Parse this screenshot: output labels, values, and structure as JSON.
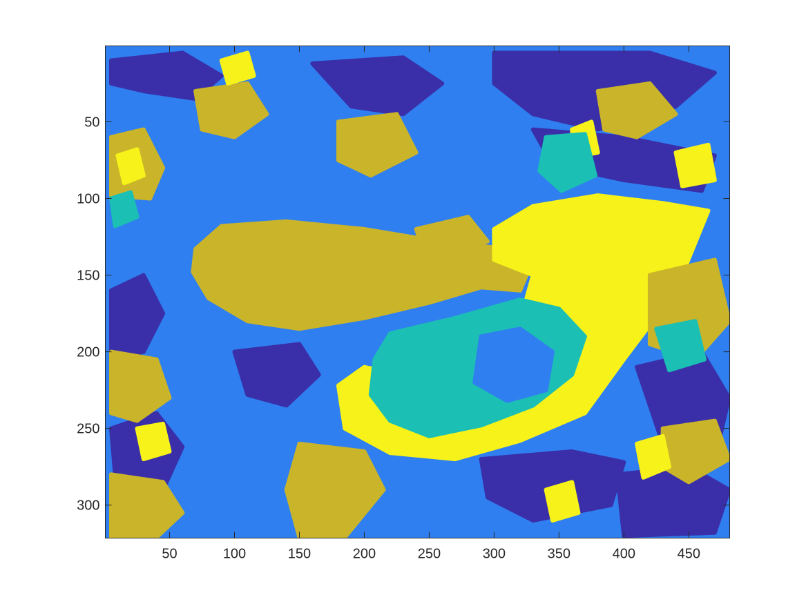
{
  "chart_data": {
    "type": "heatmap",
    "description_kind": "segmented image label map (imagesc)",
    "title": "",
    "xlabel": "",
    "ylabel": "",
    "xlim": [
      0.5,
      481.5
    ],
    "ylim": [
      0.5,
      321.5
    ],
    "y_reversed": true,
    "grid": false,
    "legend": "none",
    "x_ticks": [
      50,
      100,
      150,
      200,
      250,
      300,
      350,
      400,
      450
    ],
    "y_ticks": [
      50,
      100,
      150,
      200,
      250,
      300
    ],
    "x_tick_labels": [
      "50",
      "100",
      "150",
      "200",
      "250",
      "300",
      "350",
      "400",
      "450"
    ],
    "y_tick_labels": [
      "50",
      "100",
      "150",
      "200",
      "250",
      "300"
    ],
    "colormap": [
      "#3a2fa8",
      "#2f7ff0",
      "#1cbfb4",
      "#c9b42a",
      "#f6f21a"
    ],
    "class_levels": [
      1,
      2,
      3,
      4,
      5
    ],
    "background_class": 2,
    "regions": [
      {
        "class": 4,
        "outline": [
          [
            70,
            133
          ],
          [
            90,
            118
          ],
          [
            140,
            115
          ],
          [
            200,
            120
          ],
          [
            250,
            127
          ],
          [
            300,
            132
          ],
          [
            330,
            140
          ],
          [
            320,
            160
          ],
          [
            290,
            158
          ],
          [
            250,
            168
          ],
          [
            200,
            178
          ],
          [
            150,
            185
          ],
          [
            110,
            180
          ],
          [
            80,
            165
          ],
          [
            68,
            148
          ]
        ]
      },
      {
        "class": 5,
        "outline": [
          [
            300,
            120
          ],
          [
            330,
            105
          ],
          [
            380,
            98
          ],
          [
            430,
            103
          ],
          [
            465,
            108
          ],
          [
            440,
            160
          ],
          [
            400,
            205
          ],
          [
            370,
            240
          ],
          [
            320,
            258
          ],
          [
            270,
            270
          ],
          [
            220,
            266
          ],
          [
            185,
            250
          ],
          [
            180,
            222
          ],
          [
            200,
            210
          ],
          [
            230,
            215
          ],
          [
            280,
            200
          ],
          [
            320,
            180
          ],
          [
            330,
            150
          ],
          [
            300,
            140
          ]
        ]
      },
      {
        "class": 3,
        "outline": [
          [
            220,
            188
          ],
          [
            270,
            178
          ],
          [
            320,
            166
          ],
          [
            350,
            172
          ],
          [
            370,
            190
          ],
          [
            360,
            215
          ],
          [
            330,
            235
          ],
          [
            290,
            248
          ],
          [
            250,
            255
          ],
          [
            220,
            245
          ],
          [
            205,
            228
          ],
          [
            208,
            205
          ]
        ]
      },
      {
        "class": 2,
        "outline": [
          [
            290,
            190
          ],
          [
            320,
            185
          ],
          [
            345,
            200
          ],
          [
            340,
            225
          ],
          [
            310,
            232
          ],
          [
            285,
            220
          ]
        ]
      },
      {
        "class": 1,
        "outline": [
          [
            5,
            10
          ],
          [
            60,
            5
          ],
          [
            90,
            20
          ],
          [
            70,
            35
          ],
          [
            30,
            30
          ],
          [
            5,
            25
          ]
        ]
      },
      {
        "class": 1,
        "outline": [
          [
            160,
            12
          ],
          [
            230,
            8
          ],
          [
            260,
            25
          ],
          [
            230,
            45
          ],
          [
            190,
            40
          ]
        ]
      },
      {
        "class": 1,
        "outline": [
          [
            300,
            5
          ],
          [
            420,
            5
          ],
          [
            470,
            18
          ],
          [
            440,
            40
          ],
          [
            380,
            55
          ],
          [
            330,
            45
          ],
          [
            300,
            25
          ]
        ]
      },
      {
        "class": 1,
        "outline": [
          [
            330,
            55
          ],
          [
            400,
            60
          ],
          [
            470,
            72
          ],
          [
            460,
            95
          ],
          [
            400,
            88
          ],
          [
            345,
            78
          ]
        ]
      },
      {
        "class": 1,
        "outline": [
          [
            5,
            250
          ],
          [
            40,
            240
          ],
          [
            60,
            262
          ],
          [
            45,
            290
          ],
          [
            10,
            300
          ]
        ]
      },
      {
        "class": 1,
        "outline": [
          [
            290,
            270
          ],
          [
            360,
            265
          ],
          [
            400,
            272
          ],
          [
            390,
            300
          ],
          [
            330,
            310
          ],
          [
            295,
            295
          ]
        ]
      },
      {
        "class": 1,
        "outline": [
          [
            410,
            210
          ],
          [
            460,
            200
          ],
          [
            481,
            230
          ],
          [
            470,
            270
          ],
          [
            430,
            260
          ]
        ]
      },
      {
        "class": 1,
        "outline": [
          [
            5,
            160
          ],
          [
            30,
            150
          ],
          [
            45,
            175
          ],
          [
            30,
            200
          ],
          [
            5,
            205
          ]
        ]
      },
      {
        "class": 1,
        "outline": [
          [
            100,
            200
          ],
          [
            150,
            195
          ],
          [
            165,
            215
          ],
          [
            140,
            235
          ],
          [
            110,
            228
          ]
        ]
      },
      {
        "class": 1,
        "outline": [
          [
            395,
            280
          ],
          [
            450,
            275
          ],
          [
            481,
            290
          ],
          [
            470,
            318
          ],
          [
            400,
            320
          ]
        ]
      },
      {
        "class": 4,
        "outline": [
          [
            5,
            60
          ],
          [
            30,
            55
          ],
          [
            45,
            80
          ],
          [
            35,
            100
          ],
          [
            5,
            98
          ]
        ]
      },
      {
        "class": 4,
        "outline": [
          [
            70,
            30
          ],
          [
            110,
            25
          ],
          [
            125,
            45
          ],
          [
            100,
            60
          ],
          [
            75,
            55
          ]
        ]
      },
      {
        "class": 4,
        "outline": [
          [
            180,
            50
          ],
          [
            225,
            45
          ],
          [
            240,
            70
          ],
          [
            205,
            85
          ],
          [
            180,
            75
          ]
        ]
      },
      {
        "class": 4,
        "outline": [
          [
            380,
            30
          ],
          [
            420,
            25
          ],
          [
            440,
            45
          ],
          [
            410,
            60
          ],
          [
            385,
            55
          ]
        ]
      },
      {
        "class": 4,
        "outline": [
          [
            420,
            150
          ],
          [
            470,
            140
          ],
          [
            481,
            180
          ],
          [
            455,
            205
          ],
          [
            420,
            195
          ]
        ]
      },
      {
        "class": 4,
        "outline": [
          [
            5,
            200
          ],
          [
            40,
            205
          ],
          [
            50,
            230
          ],
          [
            25,
            245
          ],
          [
            5,
            240
          ]
        ]
      },
      {
        "class": 4,
        "outline": [
          [
            150,
            260
          ],
          [
            200,
            265
          ],
          [
            215,
            290
          ],
          [
            185,
            321
          ],
          [
            150,
            321
          ],
          [
            140,
            290
          ]
        ]
      },
      {
        "class": 4,
        "outline": [
          [
            5,
            280
          ],
          [
            45,
            285
          ],
          [
            60,
            305
          ],
          [
            40,
            321
          ],
          [
            5,
            321
          ]
        ]
      },
      {
        "class": 4,
        "outline": [
          [
            430,
            250
          ],
          [
            470,
            245
          ],
          [
            481,
            270
          ],
          [
            450,
            285
          ],
          [
            430,
            275
          ]
        ]
      },
      {
        "class": 4,
        "outline": [
          [
            240,
            120
          ],
          [
            280,
            112
          ],
          [
            295,
            128
          ],
          [
            270,
            135
          ],
          [
            245,
            132
          ]
        ]
      },
      {
        "class": 5,
        "outline": [
          [
            10,
            72
          ],
          [
            25,
            68
          ],
          [
            30,
            85
          ],
          [
            15,
            90
          ]
        ]
      },
      {
        "class": 5,
        "outline": [
          [
            90,
            10
          ],
          [
            110,
            5
          ],
          [
            115,
            20
          ],
          [
            95,
            25
          ]
        ]
      },
      {
        "class": 5,
        "outline": [
          [
            25,
            250
          ],
          [
            45,
            247
          ],
          [
            50,
            265
          ],
          [
            30,
            270
          ]
        ]
      },
      {
        "class": 5,
        "outline": [
          [
            340,
            290
          ],
          [
            360,
            285
          ],
          [
            365,
            305
          ],
          [
            345,
            310
          ]
        ]
      },
      {
        "class": 5,
        "outline": [
          [
            410,
            260
          ],
          [
            430,
            255
          ],
          [
            435,
            275
          ],
          [
            415,
            282
          ]
        ]
      },
      {
        "class": 5,
        "outline": [
          [
            440,
            70
          ],
          [
            465,
            65
          ],
          [
            470,
            88
          ],
          [
            445,
            92
          ]
        ]
      },
      {
        "class": 5,
        "outline": [
          [
            360,
            55
          ],
          [
            375,
            50
          ],
          [
            380,
            70
          ],
          [
            362,
            73
          ]
        ]
      },
      {
        "class": 3,
        "outline": [
          [
            340,
            60
          ],
          [
            370,
            58
          ],
          [
            378,
            85
          ],
          [
            352,
            95
          ],
          [
            335,
            82
          ]
        ]
      },
      {
        "class": 3,
        "outline": [
          [
            425,
            185
          ],
          [
            455,
            180
          ],
          [
            462,
            205
          ],
          [
            435,
            212
          ]
        ]
      },
      {
        "class": 3,
        "outline": [
          [
            5,
            100
          ],
          [
            20,
            96
          ],
          [
            25,
            112
          ],
          [
            8,
            118
          ]
        ]
      }
    ]
  }
}
